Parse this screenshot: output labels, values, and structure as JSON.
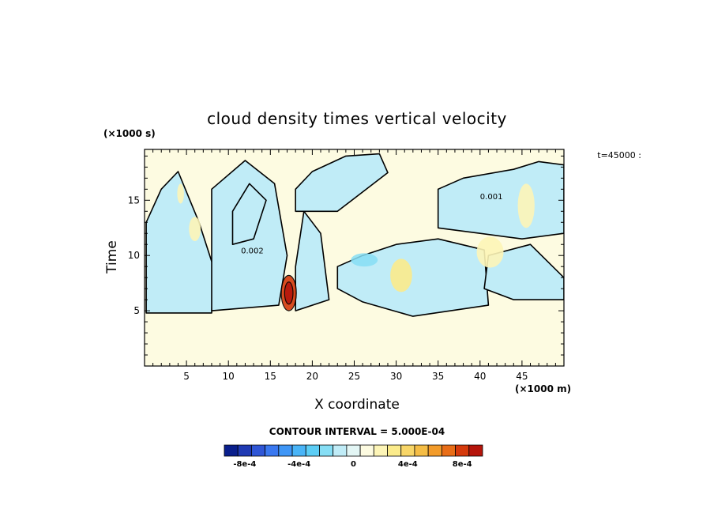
{
  "chart_data": {
    "type": "heatmap",
    "title": "cloud density times vertical velocity",
    "xlabel": "X coordinate",
    "ylabel": "Time",
    "x_units": "(×1000 m)",
    "y_units": "(×1000 s)",
    "time_label": "t=45000 :",
    "xlim": [
      0,
      50
    ],
    "ylim": [
      0,
      19.6
    ],
    "x_ticks": [
      5,
      10,
      15,
      20,
      25,
      30,
      35,
      40,
      45
    ],
    "y_ticks": [
      5,
      10,
      15
    ],
    "contour_interval": "CONTOUR INTERVAL = 5.000E-04",
    "contour_labels": [
      "0.001",
      "0.002"
    ],
    "colorbar": {
      "levels": [
        -0.0009,
        -0.0008,
        -0.0007,
        -0.0006,
        -0.0005,
        -0.0004,
        -0.0003,
        -0.0002,
        -0.0001,
        0,
        0.0001,
        0.0002,
        0.0003,
        0.0004,
        0.0005,
        0.0006,
        0.0007,
        0.0008,
        0.0009
      ],
      "colors": [
        "#0a1f8c",
        "#1f3ab3",
        "#2f56d6",
        "#3a78f0",
        "#3f96f6",
        "#49b4f7",
        "#5ccdf5",
        "#86def5",
        "#c0ecf7",
        "#e3f6f5",
        "#fdfbe1",
        "#fdf5b7",
        "#fbeb8b",
        "#f8d668",
        "#f5bd45",
        "#f29b2a",
        "#e86d17",
        "#d53a0c",
        "#b5150b"
      ],
      "tick_labels": [
        "-8e-4",
        "-4e-4",
        "0",
        "4e-4",
        "8e-4"
      ],
      "tick_values": [
        -0.0008,
        -0.0004,
        0,
        0.0004,
        0.0008
      ]
    },
    "background_value": 0,
    "regions": [
      {
        "x": [
          0.2,
          8,
          8.2,
          6.5,
          4,
          2,
          0.2
        ],
        "y": [
          4.8,
          4.8,
          9,
          13,
          17.6,
          16,
          13
        ]
      },
      {
        "x": [
          8,
          16,
          17,
          15.5,
          12,
          8
        ],
        "y": [
          5,
          5.5,
          10,
          16.5,
          18.6,
          16
        ]
      },
      {
        "x": [
          10.5,
          13,
          14.5,
          12.5,
          10.5
        ],
        "y": [
          11,
          11.5,
          15,
          16.5,
          14
        ]
      },
      {
        "x": [
          18,
          22,
          21,
          19,
          18
        ],
        "y": [
          5,
          6,
          12,
          14,
          9
        ]
      },
      {
        "x": [
          18,
          23,
          29,
          28,
          24,
          20,
          18
        ],
        "y": [
          14,
          14,
          17.5,
          19.2,
          19,
          17.6,
          16
        ]
      },
      {
        "x": [
          23,
          26,
          32,
          41,
          40.5,
          35,
          30,
          26,
          23
        ],
        "y": [
          7,
          5.8,
          4.5,
          5.5,
          10.5,
          11.5,
          11,
          10,
          9
        ]
      },
      {
        "x": [
          35,
          40,
          45,
          50,
          50,
          47,
          44,
          38,
          35
        ],
        "y": [
          12.5,
          12,
          11.5,
          12,
          18.2,
          18.5,
          17.8,
          17,
          16
        ]
      },
      {
        "x": [
          40.5,
          44,
          50,
          50,
          46,
          41
        ],
        "y": [
          7,
          6,
          6,
          8,
          11,
          10
        ]
      }
    ],
    "positive_anomalies": [
      {
        "x": 17.2,
        "y": 6.6,
        "rx": 0.9,
        "ry": 1.6,
        "value": 0.0008
      },
      {
        "x": 17.2,
        "y": 6.6,
        "rx": 0.5,
        "ry": 1.0,
        "value": 0.001
      },
      {
        "x": 30.6,
        "y": 8.2,
        "rx": 1.3,
        "ry": 1.5,
        "value": 0.0003
      },
      {
        "x": 41.2,
        "y": 10.3,
        "rx": 1.6,
        "ry": 1.4,
        "value": 0.0002
      },
      {
        "x": 45.5,
        "y": 14.5,
        "rx": 1.0,
        "ry": 2.0,
        "value": 0.0002
      },
      {
        "x": 6.0,
        "y": 12.4,
        "rx": 0.7,
        "ry": 1.1,
        "value": 0.0002
      },
      {
        "x": 4.3,
        "y": 15.6,
        "rx": 0.4,
        "ry": 0.9,
        "value": 0.0002
      }
    ],
    "negative_anomalies": [
      {
        "x": 26.2,
        "y": 9.6,
        "rx": 1.6,
        "ry": 0.6,
        "value": -0.0002
      },
      {
        "x": 45.8,
        "y": 17.6,
        "rx": 0.8,
        "ry": 0.5,
        "value": -0.0001
      }
    ]
  }
}
